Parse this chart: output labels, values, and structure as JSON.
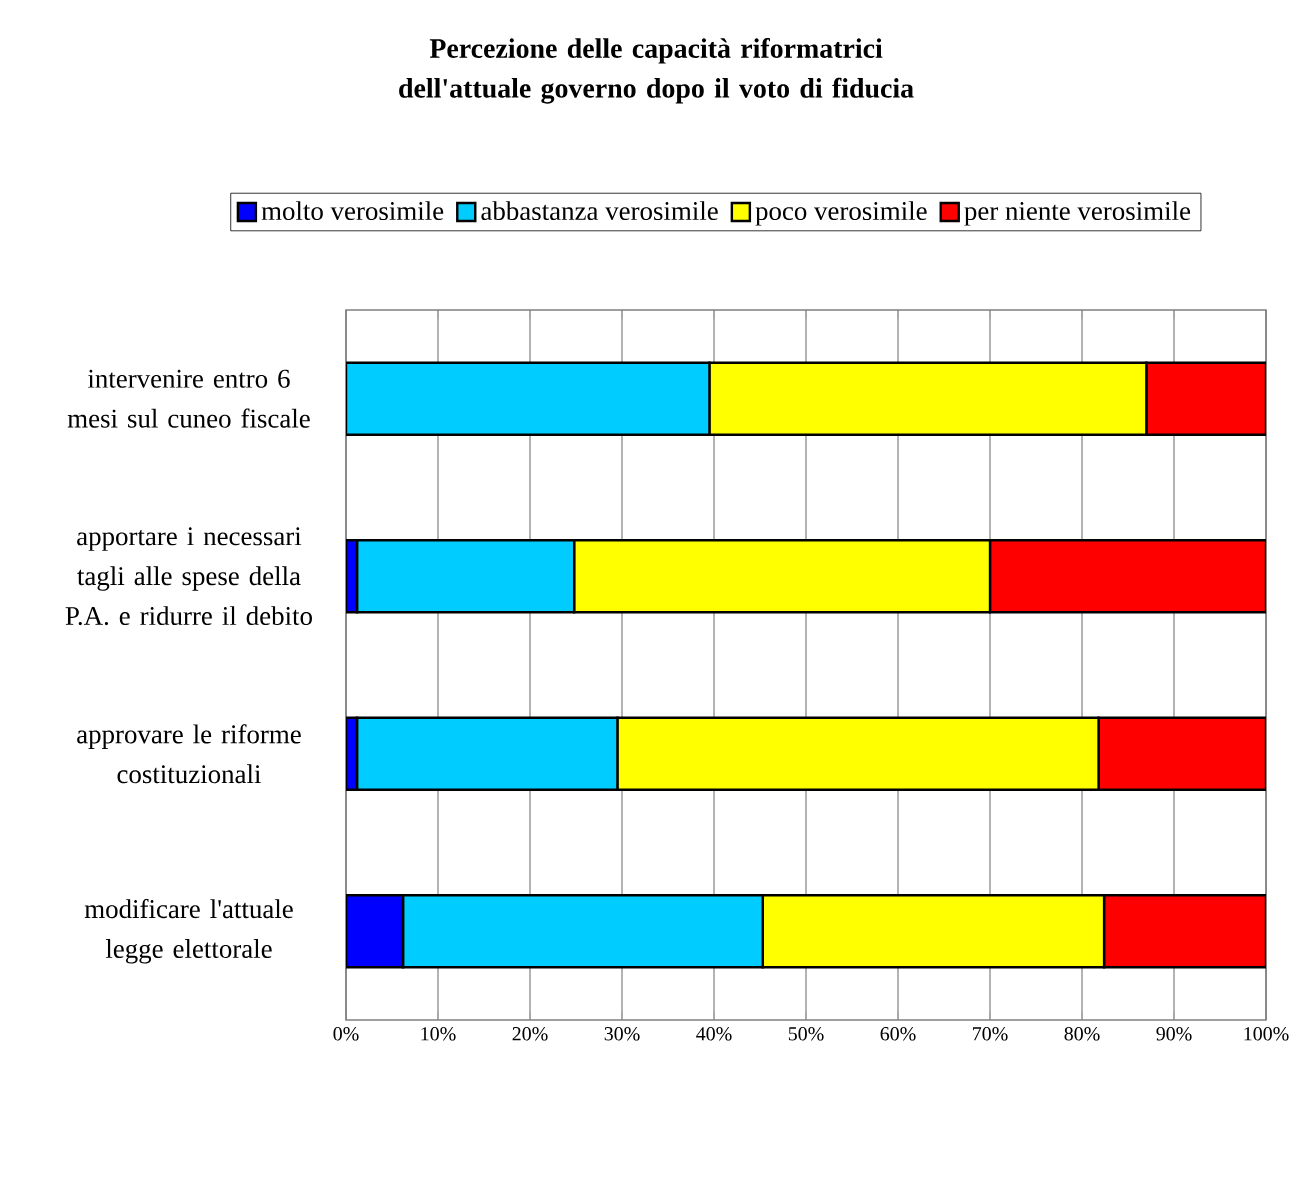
{
  "chart_data": {
    "type": "bar",
    "orientation": "horizontal",
    "stacked": true,
    "title": "Percezione delle capacità riformatrici dell'attuale governo dopo il voto di fiducia",
    "categories": [
      "intervenire entro 6 mesi sul cuneo fiscale",
      "apportare i necessari tagli alle spese della P.A. e ridurre il debito",
      "approvare le riforme costituzionali",
      "modificare l'attuale legge elettorale"
    ],
    "series": [
      {
        "name": "molto verosimile",
        "color": "#0000ff",
        "values": [
          0,
          1.2,
          1.2,
          6.2
        ]
      },
      {
        "name": "abbastanza verosimile",
        "color": "#00ccff",
        "values": [
          39.5,
          23.6,
          28.3,
          39.1
        ]
      },
      {
        "name": "poco verosimile",
        "color": "#ffff00",
        "values": [
          47.5,
          45.2,
          52.3,
          37.1
        ]
      },
      {
        "name": "per niente verosimile",
        "color": "#ff0000",
        "values": [
          13.0,
          30.0,
          18.2,
          17.6
        ]
      }
    ],
    "xlim": [
      0,
      100
    ],
    "xticks": [
      {
        "value": 0,
        "label": "0%"
      },
      {
        "value": 10,
        "label": "10%"
      },
      {
        "value": 20,
        "label": "20%"
      },
      {
        "value": 30,
        "label": "30%"
      },
      {
        "value": 40,
        "label": "40%"
      },
      {
        "value": 50,
        "label": "50%"
      },
      {
        "value": 60,
        "label": "60%"
      },
      {
        "value": 70,
        "label": "70%"
      },
      {
        "value": 80,
        "label": "80%"
      },
      {
        "value": 90,
        "label": "90%"
      },
      {
        "value": 100,
        "label": "100%"
      }
    ],
    "grid": "x",
    "legend": "top"
  }
}
